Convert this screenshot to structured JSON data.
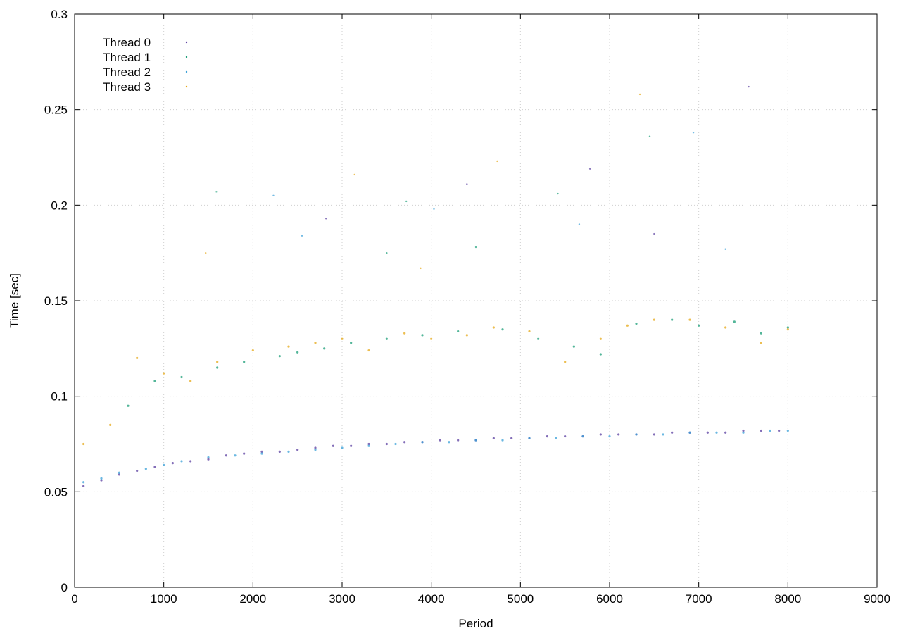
{
  "chart_data": {
    "type": "scatter",
    "title": "",
    "xlabel": "Period",
    "ylabel": "Time [sec]",
    "xlim": [
      0,
      9000
    ],
    "ylim": [
      0,
      0.3
    ],
    "xticks": [
      "0",
      "1000",
      "2000",
      "3000",
      "4000",
      "5000",
      "6000",
      "7000",
      "8000",
      "9000"
    ],
    "yticks": [
      "0",
      "0.05",
      "0.1",
      "0.15",
      "0.2",
      "0.25",
      "0.3"
    ],
    "grid": true,
    "legend_position": "top-left",
    "series": [
      {
        "name": "Thread 0",
        "color": "#5a3ea0",
        "points": [
          [
            100,
            0.053
          ],
          [
            300,
            0.056
          ],
          [
            500,
            0.059
          ],
          [
            700,
            0.061
          ],
          [
            900,
            0.063
          ],
          [
            1100,
            0.065
          ],
          [
            1300,
            0.066
          ],
          [
            1500,
            0.067
          ],
          [
            1700,
            0.069
          ],
          [
            1900,
            0.07
          ],
          [
            2100,
            0.071
          ],
          [
            2300,
            0.071
          ],
          [
            2500,
            0.072
          ],
          [
            2700,
            0.073
          ],
          [
            2900,
            0.074
          ],
          [
            3100,
            0.074
          ],
          [
            3300,
            0.075
          ],
          [
            3500,
            0.075
          ],
          [
            3700,
            0.076
          ],
          [
            3900,
            0.076
          ],
          [
            4100,
            0.077
          ],
          [
            4300,
            0.077
          ],
          [
            4500,
            0.077
          ],
          [
            4700,
            0.078
          ],
          [
            4900,
            0.078
          ],
          [
            5100,
            0.078
          ],
          [
            5300,
            0.079
          ],
          [
            5500,
            0.079
          ],
          [
            5700,
            0.079
          ],
          [
            5900,
            0.08
          ],
          [
            6100,
            0.08
          ],
          [
            6300,
            0.08
          ],
          [
            6500,
            0.08
          ],
          [
            6700,
            0.081
          ],
          [
            6900,
            0.081
          ],
          [
            7100,
            0.081
          ],
          [
            7300,
            0.081
          ],
          [
            7500,
            0.082
          ],
          [
            7700,
            0.082
          ],
          [
            7900,
            0.082
          ]
        ]
      },
      {
        "name": "Thread 1",
        "color": "#1a9e77",
        "points": [
          [
            600,
            0.095
          ],
          [
            900,
            0.108
          ],
          [
            1200,
            0.11
          ],
          [
            1600,
            0.115
          ],
          [
            1900,
            0.118
          ],
          [
            2300,
            0.121
          ],
          [
            2500,
            0.123
          ],
          [
            2800,
            0.125
          ],
          [
            3100,
            0.128
          ],
          [
            3500,
            0.13
          ],
          [
            3900,
            0.132
          ],
          [
            4300,
            0.134
          ],
          [
            4800,
            0.135
          ],
          [
            5200,
            0.13
          ],
          [
            5600,
            0.126
          ],
          [
            5900,
            0.122
          ],
          [
            6300,
            0.138
          ],
          [
            6700,
            0.14
          ],
          [
            7000,
            0.137
          ],
          [
            7400,
            0.139
          ],
          [
            7700,
            0.133
          ],
          [
            8000,
            0.136
          ]
        ]
      },
      {
        "name": "Thread 2",
        "color": "#3aa0d8",
        "points": [
          [
            100,
            0.055
          ],
          [
            300,
            0.057
          ],
          [
            500,
            0.06
          ],
          [
            800,
            0.062
          ],
          [
            1000,
            0.064
          ],
          [
            1200,
            0.066
          ],
          [
            1500,
            0.068
          ],
          [
            1800,
            0.069
          ],
          [
            2100,
            0.07
          ],
          [
            2400,
            0.071
          ],
          [
            2700,
            0.072
          ],
          [
            3000,
            0.073
          ],
          [
            3300,
            0.074
          ],
          [
            3600,
            0.075
          ],
          [
            3900,
            0.076
          ],
          [
            4200,
            0.076
          ],
          [
            4500,
            0.077
          ],
          [
            4800,
            0.077
          ],
          [
            5100,
            0.078
          ],
          [
            5400,
            0.078
          ],
          [
            5700,
            0.079
          ],
          [
            6000,
            0.079
          ],
          [
            6300,
            0.08
          ],
          [
            6600,
            0.08
          ],
          [
            6900,
            0.081
          ],
          [
            7200,
            0.081
          ],
          [
            7500,
            0.081
          ],
          [
            7800,
            0.082
          ],
          [
            8000,
            0.082
          ]
        ]
      },
      {
        "name": "Thread 3",
        "color": "#e6a817",
        "points": [
          [
            100,
            0.075
          ],
          [
            400,
            0.085
          ],
          [
            700,
            0.12
          ],
          [
            1000,
            0.112
          ],
          [
            1300,
            0.108
          ],
          [
            1600,
            0.118
          ],
          [
            2000,
            0.124
          ],
          [
            2400,
            0.126
          ],
          [
            2700,
            0.128
          ],
          [
            3000,
            0.13
          ],
          [
            3300,
            0.124
          ],
          [
            3700,
            0.133
          ],
          [
            4000,
            0.13
          ],
          [
            4400,
            0.132
          ],
          [
            4700,
            0.136
          ],
          [
            5100,
            0.134
          ],
          [
            5500,
            0.118
          ],
          [
            5900,
            0.13
          ],
          [
            6200,
            0.137
          ],
          [
            6500,
            0.14
          ],
          [
            6900,
            0.14
          ],
          [
            7300,
            0.136
          ],
          [
            7700,
            0.128
          ],
          [
            8000,
            0.135
          ]
        ]
      }
    ],
    "outlier_points": [
      [
        1590,
        0.207
      ],
      [
        2230,
        0.205
      ],
      [
        2820,
        0.193
      ],
      [
        3140,
        0.216
      ],
      [
        3720,
        0.202
      ],
      [
        4030,
        0.198
      ],
      [
        4400,
        0.211
      ],
      [
        4740,
        0.223
      ],
      [
        5420,
        0.206
      ],
      [
        5660,
        0.19
      ],
      [
        5780,
        0.219
      ],
      [
        6340,
        0.258
      ],
      [
        6450,
        0.236
      ],
      [
        6940,
        0.238
      ],
      [
        7560,
        0.262
      ],
      [
        1470,
        0.175
      ],
      [
        3500,
        0.175
      ],
      [
        2550,
        0.184
      ],
      [
        6500,
        0.185
      ],
      [
        3880,
        0.167
      ],
      [
        4500,
        0.178
      ],
      [
        7300,
        0.177
      ]
    ]
  }
}
